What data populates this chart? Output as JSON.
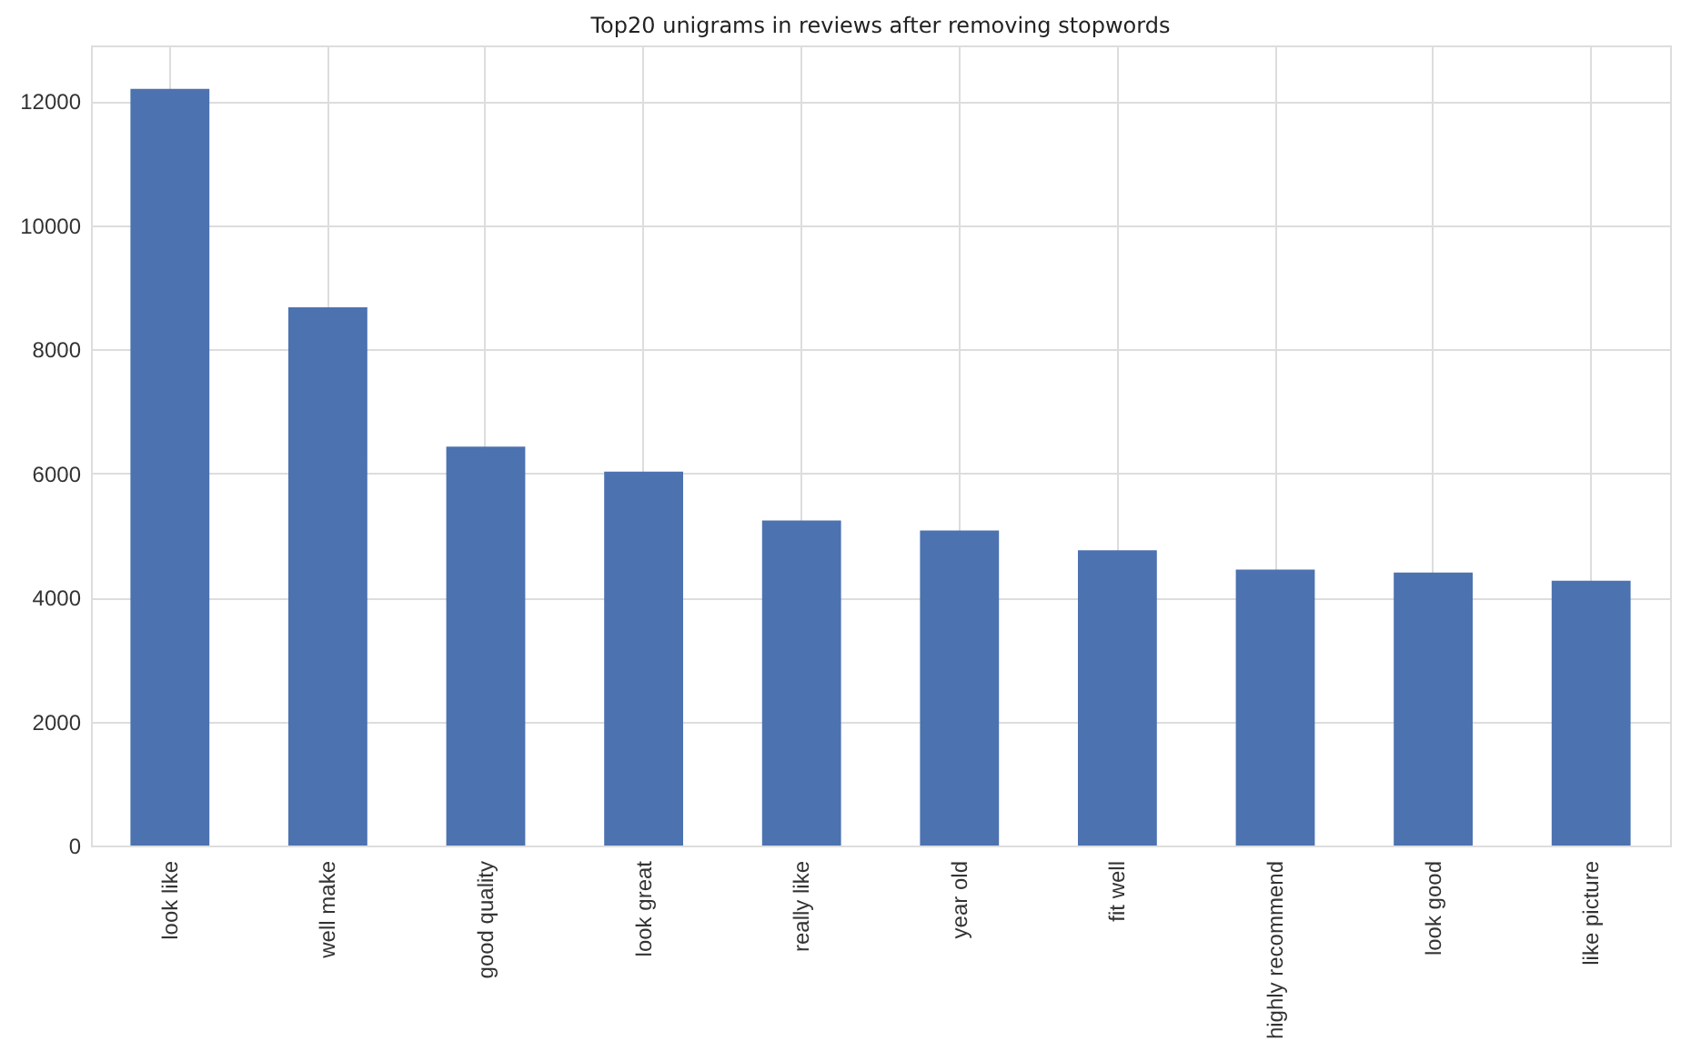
{
  "chart_data": {
    "type": "bar",
    "title": "Top20 unigrams in reviews after removing stopwords",
    "categories": [
      "look like",
      "well make",
      "good quality",
      "look great",
      "really like",
      "year old",
      "fit well",
      "highly recommend",
      "look good",
      "like picture"
    ],
    "values": [
      12200,
      8680,
      6430,
      6030,
      5240,
      5080,
      4760,
      4450,
      4400,
      4270
    ],
    "color": "#4c72b0",
    "ylim": [
      0,
      12900
    ],
    "yticks": [
      0,
      2000,
      4000,
      6000,
      8000,
      10000,
      12000
    ],
    "grid": true
  }
}
